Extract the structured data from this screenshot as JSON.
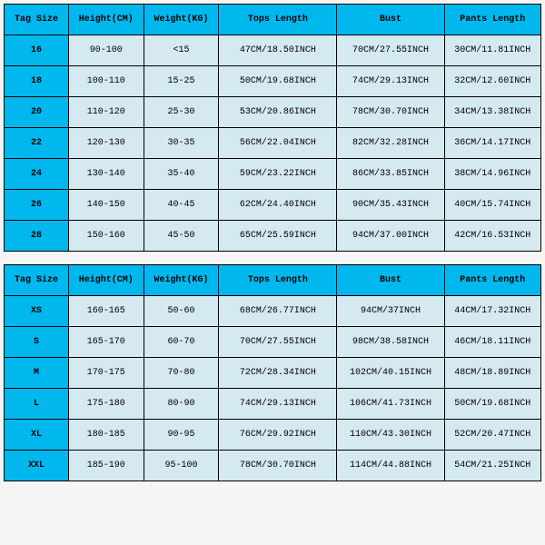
{
  "table1": {
    "columns": [
      "Tag Size",
      "Height(CM)",
      "Weight(KG)",
      "Tops Length",
      "Bust",
      "Pants Length"
    ],
    "col_widths": [
      "12%",
      "14%",
      "14%",
      "22%",
      "20%",
      "18%"
    ],
    "rows": [
      [
        "16",
        "90-100",
        "<15",
        "47CM/18.50INCH",
        "70CM/27.55INCH",
        "30CM/11.81INCH"
      ],
      [
        "18",
        "100-110",
        "15-25",
        "50CM/19.68INCH",
        "74CM/29.13INCH",
        "32CM/12.60INCH"
      ],
      [
        "20",
        "110-120",
        "25-30",
        "53CM/20.86INCH",
        "78CM/30.70INCH",
        "34CM/13.38INCH"
      ],
      [
        "22",
        "120-130",
        "30-35",
        "56CM/22.04INCH",
        "82CM/32.28INCH",
        "36CM/14.17INCH"
      ],
      [
        "24",
        "130-140",
        "35-40",
        "59CM/23.22INCH",
        "86CM/33.85INCH",
        "38CM/14.96INCH"
      ],
      [
        "26",
        "140-150",
        "40-45",
        "62CM/24.40INCH",
        "90CM/35.43INCH",
        "40CM/15.74INCH"
      ],
      [
        "28",
        "150-160",
        "45-50",
        "65CM/25.59INCH",
        "94CM/37.00INCH",
        "42CM/16.53INCH"
      ]
    ]
  },
  "table2": {
    "columns": [
      "Tag Size",
      "Height(CM)",
      "Weight(KG)",
      "Tops Length",
      "Bust",
      "Pants Length"
    ],
    "col_widths": [
      "12%",
      "14%",
      "14%",
      "22%",
      "20%",
      "18%"
    ],
    "rows": [
      [
        "XS",
        "160-165",
        "50-60",
        "68CM/26.77INCH",
        "94CM/37INCH",
        "44CM/17.32INCH"
      ],
      [
        "S",
        "165-170",
        "60-70",
        "70CM/27.55INCH",
        "98CM/38.58INCH",
        "46CM/18.11INCH"
      ],
      [
        "M",
        "170-175",
        "70-80",
        "72CM/28.34INCH",
        "102CM/40.15INCH",
        "48CM/18.89INCH"
      ],
      [
        "L",
        "175-180",
        "80-90",
        "74CM/29.13INCH",
        "106CM/41.73INCH",
        "50CM/19.68INCH"
      ],
      [
        "XL",
        "180-185",
        "90-95",
        "76CM/29.92INCH",
        "110CM/43.30INCH",
        "52CM/20.47INCH"
      ],
      [
        "XXL",
        "185-190",
        "95-100",
        "78CM/30.70INCH",
        "114CM/44.88INCH",
        "54CM/21.25INCH"
      ]
    ]
  },
  "colors": {
    "header_bg": "#00b8ee",
    "cell_bg": "#d5e9f0",
    "border": "#000000"
  }
}
